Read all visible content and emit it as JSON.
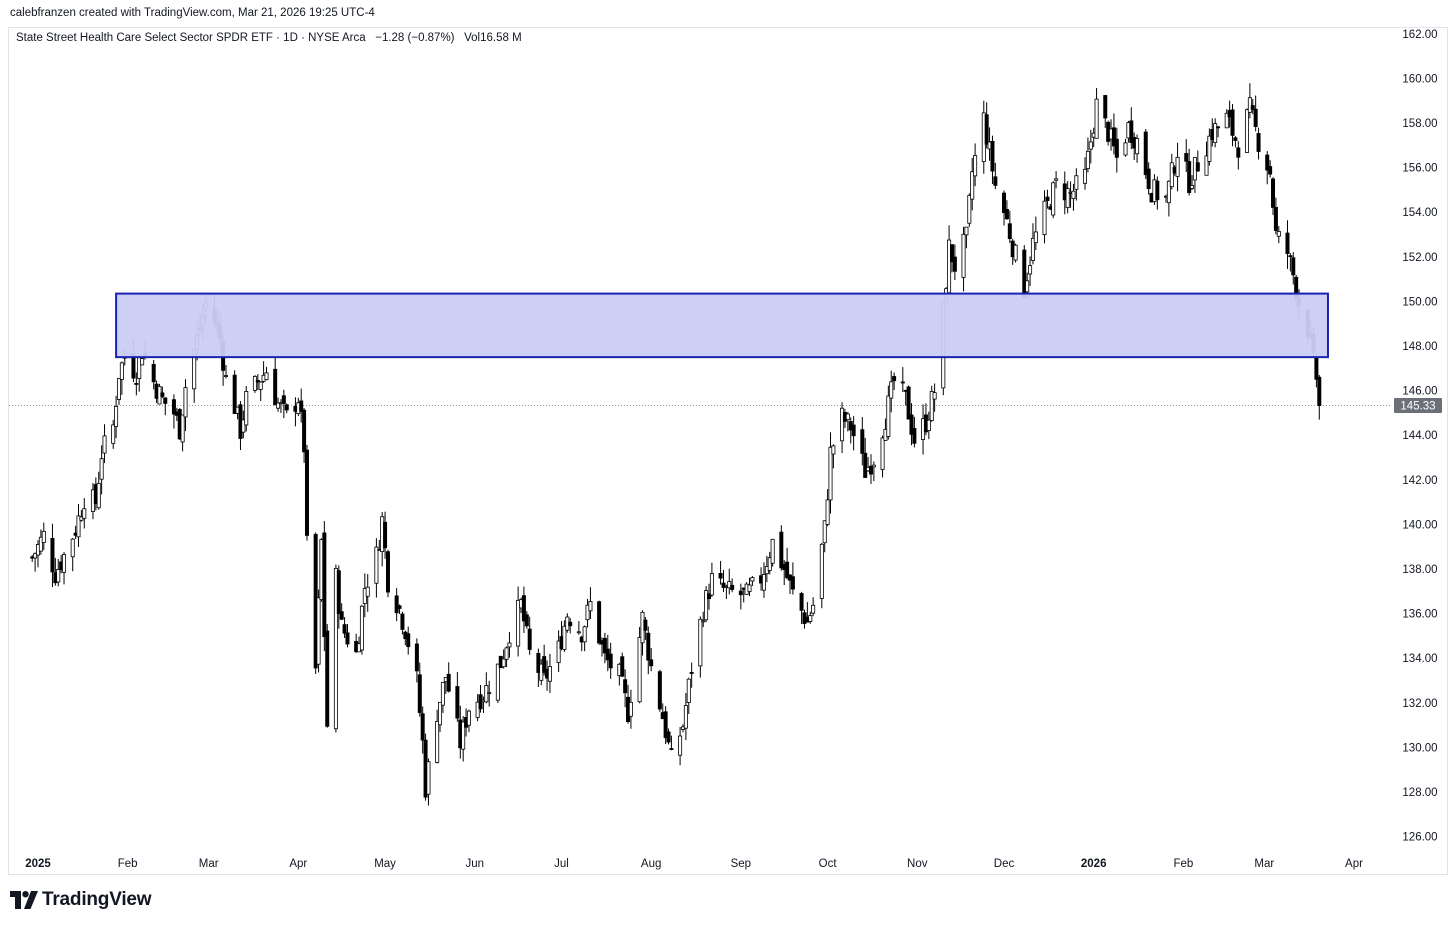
{
  "header": {
    "credit": "calebfranzen created with TradingView.com, Mar 21, 2026 19:25 UTC-4"
  },
  "symbol": {
    "name": "State Street Health Care Select Sector SPDR ETF",
    "sep1": " · ",
    "interval": "1D",
    "sep2": " · ",
    "exchange": "NYSE Arca",
    "change": "−1.28 (−0.87%)",
    "volume": "Vol16.58 M"
  },
  "footer": {
    "brand": "TradingView"
  },
  "colors": {
    "zone_fill": "#cbccf3",
    "zone_border": "#1a22b4",
    "candle_up": "#ffffff",
    "candle_down": "#000000",
    "last_price_badge": "#6b6f78"
  },
  "chart_data": {
    "type": "candlestick",
    "interval": "1D",
    "y_axis": {
      "range": [
        125,
        162
      ],
      "ticks": [
        "162.00",
        "160.00",
        "158.00",
        "156.00",
        "154.00",
        "152.00",
        "150.00",
        "148.00",
        "146.00",
        "144.00",
        "142.00",
        "140.00",
        "138.00",
        "136.00",
        "134.00",
        "132.00",
        "130.00",
        "128.00",
        "126.00"
      ],
      "side": "right"
    },
    "x_axis": {
      "labels": [
        {
          "label": "2025",
          "date": "2025-01-01",
          "bold": true
        },
        {
          "label": "Feb",
          "date": "2025-02-01"
        },
        {
          "label": "Mar",
          "date": "2025-03-01"
        },
        {
          "label": "Apr",
          "date": "2025-04-01"
        },
        {
          "label": "May",
          "date": "2025-05-01"
        },
        {
          "label": "Jun",
          "date": "2025-06-01"
        },
        {
          "label": "Jul",
          "date": "2025-07-01"
        },
        {
          "label": "Aug",
          "date": "2025-08-01"
        },
        {
          "label": "Sep",
          "date": "2025-09-01"
        },
        {
          "label": "Oct",
          "date": "2025-10-01"
        },
        {
          "label": "Nov",
          "date": "2025-11-01"
        },
        {
          "label": "Dec",
          "date": "2025-12-01"
        },
        {
          "label": "2026",
          "date": "2026-01-01",
          "bold": true
        },
        {
          "label": "Feb",
          "date": "2026-02-01"
        },
        {
          "label": "Mar",
          "date": "2026-03-01"
        },
        {
          "label": "Apr",
          "date": "2026-04-01"
        }
      ]
    },
    "last_price": "145.33",
    "last_price_value": 145.33,
    "zone": {
      "low": 147.5,
      "high": 150.35,
      "start": "2025-01-28",
      "end": "2026-03-23"
    },
    "close_path": [
      [
        "2024-12-30",
        138.5
      ],
      [
        "2025-01-03",
        139.5
      ],
      [
        "2025-01-07",
        137.8
      ],
      [
        "2025-01-10",
        138.6
      ],
      [
        "2025-01-14",
        139.8
      ],
      [
        "2025-01-17",
        141.2
      ],
      [
        "2025-01-21",
        141.0
      ],
      [
        "2025-01-23",
        143.2
      ],
      [
        "2025-01-27",
        144.4
      ],
      [
        "2025-01-29",
        146.8
      ],
      [
        "2025-01-31",
        147.5
      ],
      [
        "2025-02-04",
        146.8
      ],
      [
        "2025-02-06",
        147.8
      ],
      [
        "2025-02-10",
        146.4
      ],
      [
        "2025-02-13",
        145.6
      ],
      [
        "2025-02-17",
        145.0
      ],
      [
        "2025-02-19",
        144.3
      ],
      [
        "2025-02-21",
        146.2
      ],
      [
        "2025-02-24",
        147.8
      ],
      [
        "2025-02-26",
        148.8
      ],
      [
        "2025-02-28",
        149.9
      ],
      [
        "2025-03-03",
        149.2
      ],
      [
        "2025-03-05",
        148.3
      ],
      [
        "2025-03-07",
        146.5
      ],
      [
        "2025-03-10",
        145.3
      ],
      [
        "2025-03-12",
        144.2
      ],
      [
        "2025-03-14",
        145.6
      ],
      [
        "2025-03-18",
        146.4
      ],
      [
        "2025-03-21",
        146.9
      ],
      [
        "2025-03-25",
        145.4
      ],
      [
        "2025-03-28",
        144.8
      ],
      [
        "2025-04-01",
        145.7
      ],
      [
        "2025-04-03",
        143.5
      ],
      [
        "2025-04-04",
        139.0
      ],
      [
        "2025-04-07",
        133.5
      ],
      [
        "2025-04-09",
        139.2
      ],
      [
        "2025-04-11",
        131.0
      ],
      [
        "2025-04-14",
        137.6
      ],
      [
        "2025-04-16",
        135.4
      ],
      [
        "2025-04-21",
        134.2
      ],
      [
        "2025-04-24",
        137.2
      ],
      [
        "2025-04-28",
        138.6
      ],
      [
        "2025-04-30",
        140.2
      ],
      [
        "2025-05-02",
        137.5
      ],
      [
        "2025-05-06",
        136.2
      ],
      [
        "2025-05-08",
        135.3
      ],
      [
        "2025-05-12",
        133.0
      ],
      [
        "2025-05-14",
        130.2
      ],
      [
        "2025-05-15",
        128.2
      ],
      [
        "2025-05-19",
        131.6
      ],
      [
        "2025-05-22",
        133.2
      ],
      [
        "2025-05-27",
        130.2
      ],
      [
        "2025-05-30",
        131.8
      ],
      [
        "2025-06-04",
        132.4
      ],
      [
        "2025-06-10",
        133.8
      ],
      [
        "2025-06-13",
        135.2
      ],
      [
        "2025-06-17",
        136.4
      ],
      [
        "2025-06-20",
        134.2
      ],
      [
        "2025-06-25",
        133.0
      ],
      [
        "2025-06-30",
        134.4
      ],
      [
        "2025-07-03",
        136.0
      ],
      [
        "2025-07-08",
        135.2
      ],
      [
        "2025-07-11",
        136.4
      ],
      [
        "2025-07-16",
        134.0
      ],
      [
        "2025-07-21",
        133.2
      ],
      [
        "2025-07-24",
        131.6
      ],
      [
        "2025-07-29",
        135.8
      ],
      [
        "2025-08-01",
        133.6
      ],
      [
        "2025-08-05",
        131.4
      ],
      [
        "2025-08-08",
        129.4
      ],
      [
        "2025-08-12",
        131.0
      ],
      [
        "2025-08-15",
        133.6
      ],
      [
        "2025-08-19",
        136.2
      ],
      [
        "2025-08-22",
        137.5
      ],
      [
        "2025-08-27",
        137.0
      ],
      [
        "2025-09-03",
        136.8
      ],
      [
        "2025-09-08",
        137.6
      ],
      [
        "2025-09-12",
        139.2
      ],
      [
        "2025-09-16",
        138.0
      ],
      [
        "2025-09-19",
        136.9
      ],
      [
        "2025-09-24",
        135.6
      ],
      [
        "2025-09-26",
        136.4
      ],
      [
        "2025-09-30",
        139.8
      ],
      [
        "2025-10-02",
        143.2
      ],
      [
        "2025-10-06",
        144.8
      ],
      [
        "2025-10-09",
        144.4
      ],
      [
        "2025-10-14",
        142.4
      ],
      [
        "2025-10-17",
        143.0
      ],
      [
        "2025-10-21",
        144.8
      ],
      [
        "2025-10-24",
        146.4
      ],
      [
        "2025-10-28",
        145.6
      ],
      [
        "2025-10-31",
        143.8
      ],
      [
        "2025-11-04",
        144.6
      ],
      [
        "2025-11-07",
        146.0
      ],
      [
        "2025-11-10",
        149.5
      ],
      [
        "2025-11-12",
        152.4
      ],
      [
        "2025-11-14",
        151.6
      ],
      [
        "2025-11-18",
        152.8
      ],
      [
        "2025-11-20",
        155.8
      ],
      [
        "2025-11-24",
        158.2
      ],
      [
        "2025-11-28",
        155.2
      ],
      [
        "2025-12-02",
        153.6
      ],
      [
        "2025-12-05",
        152.0
      ],
      [
        "2025-12-08",
        150.6
      ],
      [
        "2025-12-11",
        152.6
      ],
      [
        "2025-12-15",
        154.0
      ],
      [
        "2025-12-19",
        155.2
      ],
      [
        "2025-12-24",
        154.8
      ],
      [
        "2025-12-29",
        155.6
      ],
      [
        "2026-01-02",
        158.8
      ],
      [
        "2026-01-06",
        157.6
      ],
      [
        "2026-01-09",
        156.4
      ],
      [
        "2026-01-13",
        157.8
      ],
      [
        "2026-01-16",
        157.2
      ],
      [
        "2026-01-21",
        155.0
      ],
      [
        "2026-01-26",
        154.6
      ],
      [
        "2026-01-30",
        156.8
      ],
      [
        "2026-02-03",
        155.4
      ],
      [
        "2026-02-06",
        156.2
      ],
      [
        "2026-02-11",
        157.6
      ],
      [
        "2026-02-16",
        158.2
      ],
      [
        "2026-02-20",
        157.0
      ],
      [
        "2026-02-24",
        158.6
      ],
      [
        "2026-02-27",
        157.2
      ],
      [
        "2026-03-03",
        155.8
      ],
      [
        "2026-03-05",
        153.0
      ],
      [
        "2026-03-09",
        152.2
      ],
      [
        "2026-03-11",
        151.2
      ],
      [
        "2026-03-13",
        150.0
      ],
      [
        "2026-03-16",
        148.8
      ],
      [
        "2026-03-18",
        147.2
      ],
      [
        "2026-03-19",
        146.6
      ],
      [
        "2026-03-20",
        145.33
      ]
    ],
    "last_candle": {
      "date": "2026-03-20",
      "open": 146.6,
      "high": 146.7,
      "low": 144.7,
      "close": 145.33
    }
  }
}
